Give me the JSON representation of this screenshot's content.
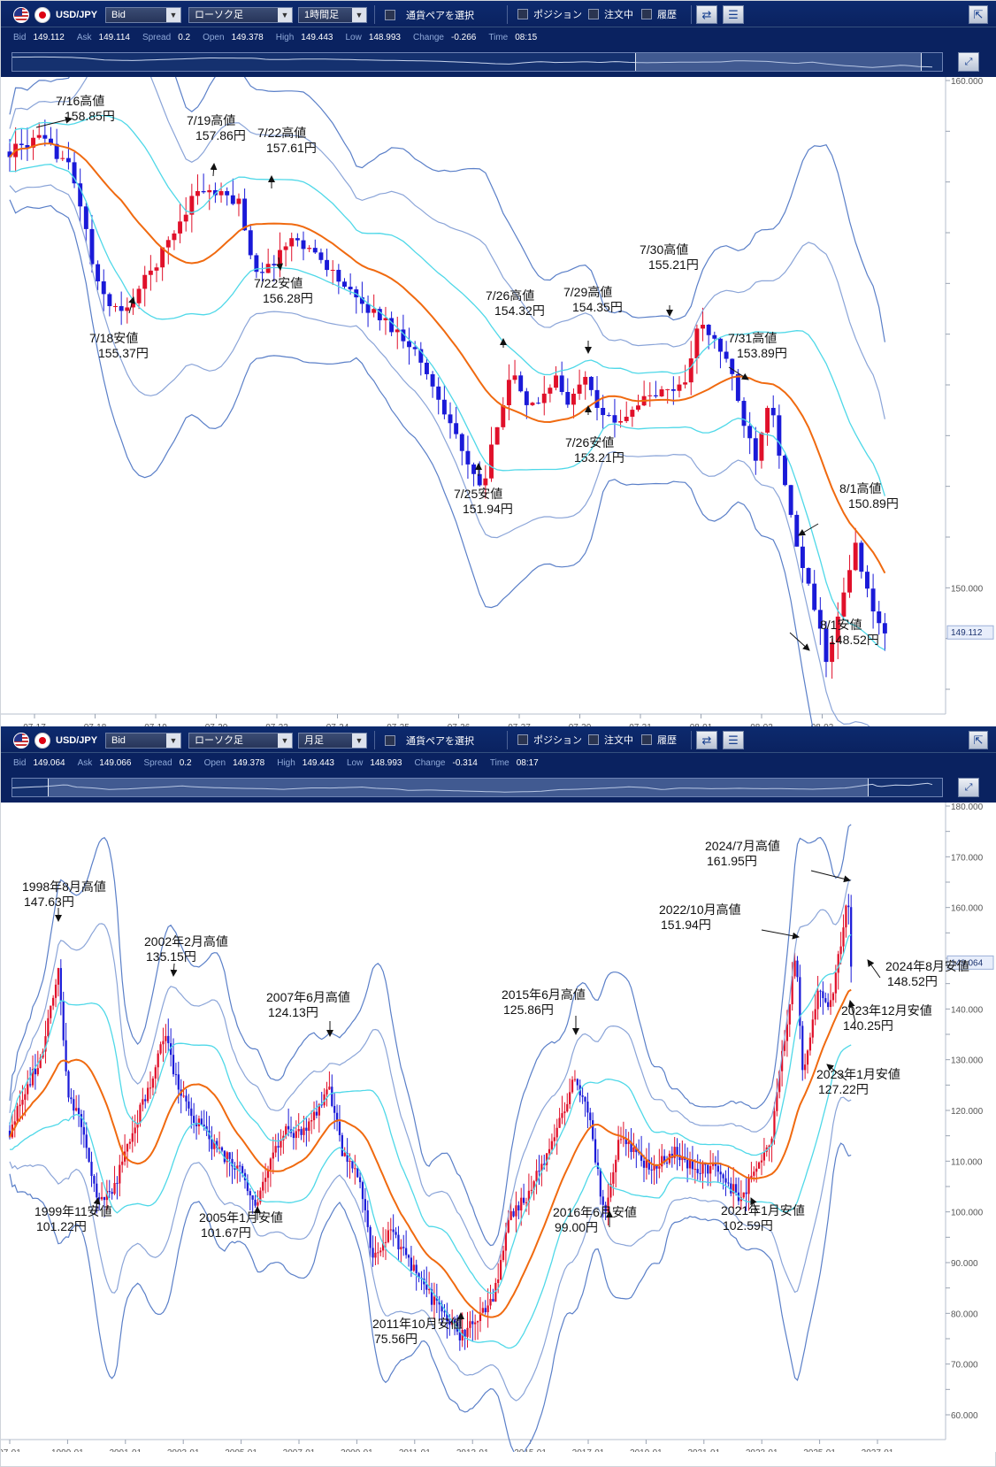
{
  "panel_top": {
    "toolbar": {
      "pair": "USD/JPY",
      "price_type": "Bid",
      "chart_kind": "ローソク足",
      "timeframe": "1時間足",
      "pair_select": "通貨ペアを選択",
      "position": "ポジション",
      "orders": "注文中",
      "history": "履歴"
    },
    "quote": [
      {
        "label": "Bid",
        "value": "149.112"
      },
      {
        "label": "Ask",
        "value": "149.114"
      },
      {
        "label": "Spread",
        "value": "0.2"
      },
      {
        "label": "Open",
        "value": "149.378"
      },
      {
        "label": "High",
        "value": "149.443"
      },
      {
        "label": "Low",
        "value": "148.993"
      },
      {
        "label": "Change",
        "value": "-0.266"
      },
      {
        "label": "Time",
        "value": "08:15"
      }
    ]
  },
  "panel_bottom": {
    "toolbar": {
      "pair": "USD/JPY",
      "price_type": "Bid",
      "chart_kind": "ローソク足",
      "timeframe": "月足",
      "pair_select": "通貨ペアを選択",
      "position": "ポジション",
      "orders": "注文中",
      "history": "履歴"
    },
    "quote": [
      {
        "label": "Bid",
        "value": "149.064"
      },
      {
        "label": "Ask",
        "value": "149.066"
      },
      {
        "label": "Spread",
        "value": "0.2"
      },
      {
        "label": "Open",
        "value": "149.378"
      },
      {
        "label": "High",
        "value": "149.443"
      },
      {
        "label": "Low",
        "value": "148.993"
      },
      {
        "label": "Change",
        "value": "-0.314"
      },
      {
        "label": "Time",
        "value": "08:17"
      }
    ]
  },
  "colors": {
    "bg_dark": "#0a2260",
    "up_candle": "#e0102a",
    "down_candle": "#1a1ad8",
    "ma": "#f06a10",
    "band_inner": "#4fd8e8",
    "band_mid": "#8aa4d8",
    "band_outer": "#5a7fc8"
  },
  "chart_data": [
    {
      "type": "candlestick",
      "timeframe": "1時間足",
      "ylim": [
        148.0,
        160.0
      ],
      "x_ticks": [
        "07-17",
        "07-18",
        "07-19",
        "07-20",
        "07-23",
        "07-24",
        "07-25",
        "07-26",
        "07-27",
        "07-30",
        "07-31",
        "08-01",
        "08-02",
        "08-03"
      ],
      "y_ticks": [
        {
          "value": 160.0,
          "label": "160.000"
        },
        {
          "value": 150.0,
          "label": "150.000"
        }
      ],
      "current_price": {
        "value": 149.112,
        "label": "149.112"
      },
      "path": [
        [
          0,
          158.6
        ],
        [
          2,
          158.85
        ],
        [
          4,
          158.4
        ],
        [
          5,
          157.5
        ],
        [
          6,
          156.0
        ],
        [
          7,
          155.6
        ],
        [
          8,
          155.37
        ],
        [
          9,
          155.9
        ],
        [
          10,
          156.3
        ],
        [
          12,
          157.3
        ],
        [
          13,
          157.86
        ],
        [
          15,
          157.7
        ],
        [
          16,
          157.61
        ],
        [
          17,
          156.3
        ],
        [
          18,
          156.28
        ],
        [
          19,
          156.7
        ],
        [
          20,
          156.9
        ],
        [
          22,
          156.4
        ],
        [
          24,
          155.7
        ],
        [
          26,
          155.3
        ],
        [
          28,
          154.8
        ],
        [
          30,
          153.7
        ],
        [
          31,
          153.1
        ],
        [
          32,
          152.3
        ],
        [
          33,
          151.94
        ],
        [
          34,
          153.3
        ],
        [
          35,
          154.32
        ],
        [
          36,
          153.5
        ],
        [
          37,
          153.7
        ],
        [
          38,
          154.2
        ],
        [
          39,
          153.5
        ],
        [
          40,
          154.35
        ],
        [
          41,
          153.6
        ],
        [
          42,
          153.21
        ],
        [
          44,
          153.7
        ],
        [
          46,
          153.9
        ],
        [
          47,
          154.0
        ],
        [
          48,
          155.21
        ],
        [
          49,
          154.9
        ],
        [
          50,
          154.5
        ],
        [
          51,
          153.4
        ],
        [
          52,
          152.6
        ],
        [
          53,
          153.89
        ],
        [
          54,
          152.0
        ],
        [
          55,
          150.6
        ],
        [
          56,
          149.7
        ],
        [
          57,
          148.52
        ],
        [
          58,
          149.7
        ],
        [
          59,
          150.89
        ],
        [
          60,
          149.6
        ],
        [
          61,
          149.112
        ]
      ],
      "annotations": [
        {
          "text": "7/16高値",
          "price": "158.85円"
        },
        {
          "text": "7/18安値",
          "price": "155.37円"
        },
        {
          "text": "7/19高値",
          "price": "157.86円"
        },
        {
          "text": "7/22高値",
          "price": "157.61円"
        },
        {
          "text": "7/22安値",
          "price": "156.28円"
        },
        {
          "text": "7/25安値",
          "price": "151.94円"
        },
        {
          "text": "7/26高値",
          "price": "154.32円"
        },
        {
          "text": "7/29高値",
          "price": "154.35円"
        },
        {
          "text": "7/26安値",
          "price": "153.21円"
        },
        {
          "text": "7/30高値",
          "price": "155.21円"
        },
        {
          "text": "7/31高値",
          "price": "153.89円"
        },
        {
          "text": "8/1高値",
          "price": "150.89円"
        },
        {
          "text": "8/1安値",
          "price": "148.52円"
        }
      ]
    },
    {
      "type": "candlestick",
      "timeframe": "月足",
      "ylim": [
        60.0,
        180.0
      ],
      "x_ticks": [
        "97-01",
        "1999-01",
        "2001-01",
        "2003-01",
        "2005-01",
        "2007-01",
        "2009-01",
        "2011-01",
        "2013-01",
        "2015-01",
        "2017-01",
        "2019-01",
        "2021-01",
        "2023-01",
        "2025-01",
        "2027-01"
      ],
      "y_ticks": [
        {
          "value": 180,
          "label": "180.000"
        },
        {
          "value": 170,
          "label": "170.000"
        },
        {
          "value": 160,
          "label": "160.000"
        },
        {
          "value": 140,
          "label": "140.000"
        },
        {
          "value": 130,
          "label": "130.000"
        },
        {
          "value": 120,
          "label": "120.000"
        },
        {
          "value": 110,
          "label": "110.000"
        },
        {
          "value": 100,
          "label": "100.000"
        },
        {
          "value": 90,
          "label": "90.000"
        },
        {
          "value": 80,
          "label": "80.000"
        },
        {
          "value": 70,
          "label": "70.000"
        },
        {
          "value": 60,
          "label": "60.000"
        }
      ],
      "current_price": {
        "value": 149.064,
        "label": "149.064"
      },
      "path": [
        [
          1997.0,
          116
        ],
        [
          1997.5,
          124
        ],
        [
          1998.0,
          130
        ],
        [
          1998.3,
          138
        ],
        [
          1998.6,
          147.63
        ],
        [
          1998.9,
          124
        ],
        [
          1999.3,
          118
        ],
        [
          1999.6,
          110
        ],
        [
          1999.9,
          101.22
        ],
        [
          2000.5,
          106
        ],
        [
          2001.0,
          116
        ],
        [
          2001.5,
          123
        ],
        [
          2002.1,
          135.15
        ],
        [
          2002.5,
          125
        ],
        [
          2003.0,
          119
        ],
        [
          2003.8,
          112
        ],
        [
          2004.5,
          109
        ],
        [
          2005.1,
          101.67
        ],
        [
          2005.6,
          110
        ],
        [
          2006.0,
          116
        ],
        [
          2006.6,
          115
        ],
        [
          2007.5,
          124.13
        ],
        [
          2007.9,
          112
        ],
        [
          2008.5,
          106
        ],
        [
          2008.9,
          91
        ],
        [
          2009.5,
          96
        ],
        [
          2010.0,
          91
        ],
        [
          2010.6,
          85
        ],
        [
          2011.2,
          80
        ],
        [
          2011.8,
          75.56
        ],
        [
          2012.4,
          79
        ],
        [
          2012.9,
          84
        ],
        [
          2013.4,
          99
        ],
        [
          2014.0,
          103
        ],
        [
          2014.8,
          114
        ],
        [
          2015.5,
          125.86
        ],
        [
          2016.0,
          119
        ],
        [
          2016.5,
          99.0
        ],
        [
          2017.0,
          114
        ],
        [
          2017.6,
          112
        ],
        [
          2018.0,
          108
        ],
        [
          2018.8,
          112
        ],
        [
          2019.5,
          108
        ],
        [
          2020.0,
          109
        ],
        [
          2020.5,
          106
        ],
        [
          2021.0,
          102.59
        ],
        [
          2021.6,
          110
        ],
        [
          2022.0,
          115
        ],
        [
          2022.8,
          151.94
        ],
        [
          2023.0,
          127.22
        ],
        [
          2023.5,
          143
        ],
        [
          2023.9,
          140.25
        ],
        [
          2024.5,
          161.95
        ],
        [
          2024.6,
          148.52
        ],
        [
          2024.6,
          149.064
        ]
      ],
      "annotations": [
        {
          "text": "1998年8月高値",
          "price": "147.63円"
        },
        {
          "text": "1999年11安値",
          "price": "101.22円"
        },
        {
          "text": "2002年2月高値",
          "price": "135.15円"
        },
        {
          "text": "2005年1月安値",
          "price": "101.67円"
        },
        {
          "text": "2007年6月高値",
          "price": "124.13円"
        },
        {
          "text": "2011年10月安値",
          "price": "75.56円"
        },
        {
          "text": "2015年6月高値",
          "price": "125.86円"
        },
        {
          "text": "2016年6月安値",
          "price": "99.00円"
        },
        {
          "text": "2021年1月安値",
          "price": "102.59円"
        },
        {
          "text": "2022/10月高値",
          "price": "151.94円"
        },
        {
          "text": "2024/7月高値",
          "price": "161.95円"
        },
        {
          "text": "2024年8月安値",
          "price": "148.52円"
        },
        {
          "text": "2023年12月安値",
          "price": "140.25円"
        },
        {
          "text": "2023年1月安値",
          "price": "127.22円"
        }
      ]
    }
  ]
}
